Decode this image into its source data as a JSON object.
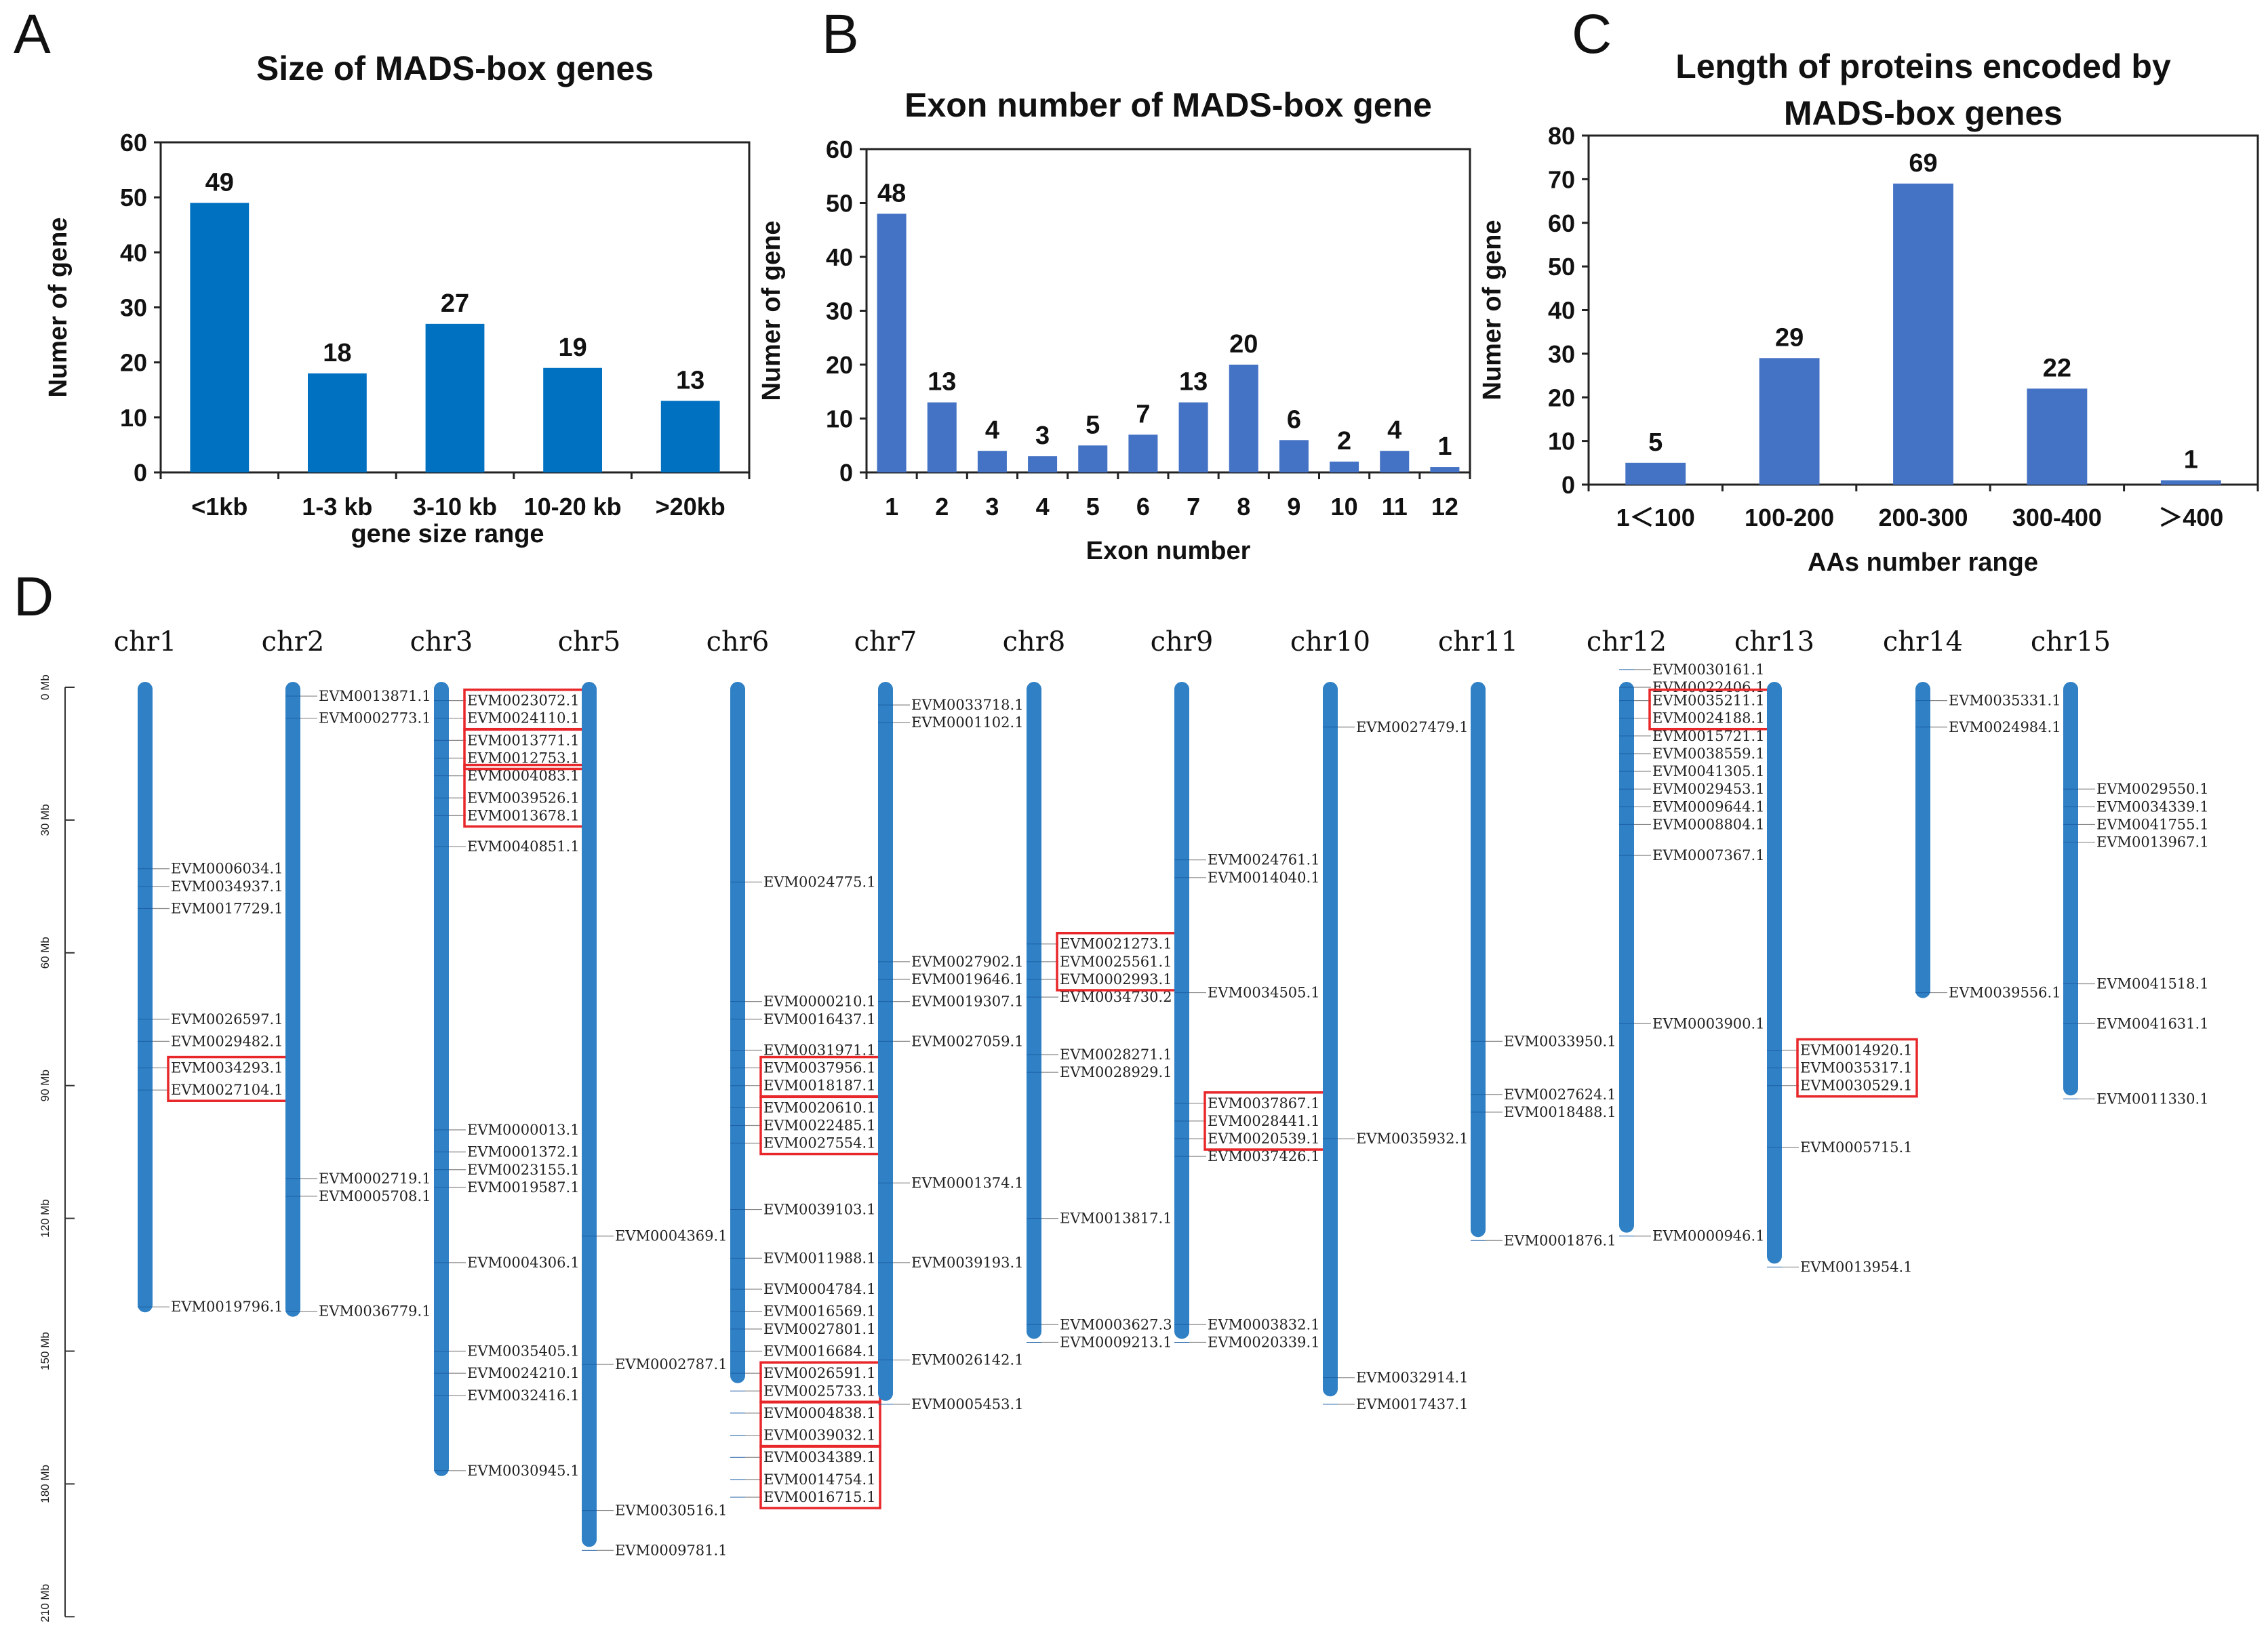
{
  "panels": {
    "a": "A",
    "b": "B",
    "c": "C",
    "d": "D"
  },
  "colors": {
    "bar_a": "#0071C1",
    "bar_bc": "#4472C4",
    "chromosome": "#2F80C4",
    "highlight": "#E8272A"
  },
  "chart_data": [
    {
      "type": "bar",
      "title": "Size of MADS-box genes",
      "categories": [
        "<1kb",
        "1-3 kb",
        "3-10 kb",
        "10-20 kb",
        ">20kb"
      ],
      "values": [
        49,
        18,
        27,
        19,
        13
      ],
      "xlabel": "gene size range",
      "ylabel": "Numer of gene",
      "ylim": [
        0,
        60
      ],
      "yticks": [
        0,
        10,
        20,
        30,
        40,
        50,
        60
      ]
    },
    {
      "type": "bar",
      "title": "Exon number of MADS-box  gene",
      "categories": [
        "1",
        "2",
        "3",
        "4",
        "5",
        "6",
        "7",
        "8",
        "9",
        "10",
        "11",
        "12"
      ],
      "values": [
        48,
        13,
        4,
        3,
        5,
        7,
        13,
        20,
        6,
        2,
        4,
        1
      ],
      "xlabel": "Exon number",
      "ylabel": "Numer of gene",
      "ylim": [
        0,
        60
      ],
      "yticks": [
        0,
        10,
        20,
        30,
        40,
        50,
        60
      ]
    },
    {
      "type": "bar",
      "title_lines": [
        "Length of proteins encoded by",
        "MADS-box genes"
      ],
      "categories": [
        "1＜100",
        "100-200",
        "200-300",
        "300-400",
        "＞400"
      ],
      "values": [
        5,
        29,
        69,
        22,
        1
      ],
      "xlabel": "AAs number range",
      "ylabel": "Numer of gene",
      "ylim": [
        0,
        80
      ],
      "yticks": [
        0,
        10,
        20,
        30,
        40,
        50,
        60,
        70,
        80
      ]
    },
    {
      "type": "chromosome_map",
      "scale_ticks": [
        "0 Mb",
        "30 Mb",
        "60 Mb",
        "90 Mb",
        "120 Mb",
        "150 Mb",
        "180 Mb",
        "210 Mb"
      ],
      "scale_mb": [
        0,
        30,
        60,
        90,
        120,
        150,
        180,
        210
      ],
      "chromosomes": [
        {
          "name": "chr1",
          "length_mb": 140,
          "genes": [
            {
              "id": "EVM0006034.1",
              "mb": 41
            },
            {
              "id": "EVM0034937.1",
              "mb": 45
            },
            {
              "id": "EVM0017729.1",
              "mb": 50
            },
            {
              "id": "EVM0026597.1",
              "mb": 75
            },
            {
              "id": "EVM0029482.1",
              "mb": 80
            },
            {
              "id": "EVM0034293.1",
              "mb": 86,
              "box": 1
            },
            {
              "id": "EVM0027104.1",
              "mb": 91,
              "box": 1
            },
            {
              "id": "EVM0019796.1",
              "mb": 140
            }
          ]
        },
        {
          "name": "chr2",
          "length_mb": 141,
          "genes": [
            {
              "id": "EVM0013871.1",
              "mb": 2
            },
            {
              "id": "EVM0002773.1",
              "mb": 7
            },
            {
              "id": "EVM0002719.1",
              "mb": 111
            },
            {
              "id": "EVM0005708.1",
              "mb": 115
            },
            {
              "id": "EVM0036779.1",
              "mb": 141
            }
          ]
        },
        {
          "name": "chr3",
          "length_mb": 177,
          "genes": [
            {
              "id": "EVM0023072.1",
              "mb": 3,
              "box": 1
            },
            {
              "id": "EVM0024110.1",
              "mb": 7,
              "box": 1
            },
            {
              "id": "EVM0013771.1",
              "mb": 12,
              "box": 2
            },
            {
              "id": "EVM0012753.1",
              "mb": 16,
              "box": 2
            },
            {
              "id": "EVM0004083.1",
              "mb": 20,
              "box": 3
            },
            {
              "id": "EVM0039526.1",
              "mb": 25,
              "box": 3
            },
            {
              "id": "EVM0013678.1",
              "mb": 29,
              "box": 3
            },
            {
              "id": "EVM0040851.1",
              "mb": 36
            },
            {
              "id": "EVM0000013.1",
              "mb": 100
            },
            {
              "id": "EVM0001372.1",
              "mb": 105
            },
            {
              "id": "EVM0023155.1",
              "mb": 109
            },
            {
              "id": "EVM0019587.1",
              "mb": 113
            },
            {
              "id": "EVM0004306.1",
              "mb": 130
            },
            {
              "id": "EVM0035405.1",
              "mb": 150
            },
            {
              "id": "EVM0024210.1",
              "mb": 155
            },
            {
              "id": "EVM0032416.1",
              "mb": 160
            },
            {
              "id": "EVM0030945.1",
              "mb": 177
            }
          ]
        },
        {
          "name": "chr5",
          "length_mb": 193,
          "genes": [
            {
              "id": "EVM0004369.1",
              "mb": 124
            },
            {
              "id": "EVM0002787.1",
              "mb": 153
            },
            {
              "id": "EVM0030516.1",
              "mb": 186
            },
            {
              "id": "EVM0009781.1",
              "mb": 195
            }
          ]
        },
        {
          "name": "chr6",
          "length_mb": 156,
          "genes": [
            {
              "id": "EVM0024775.1",
              "mb": 44
            },
            {
              "id": "EVM0000210.1",
              "mb": 71
            },
            {
              "id": "EVM0016437.1",
              "mb": 75
            },
            {
              "id": "EVM0031971.1",
              "mb": 82
            },
            {
              "id": "EVM0037956.1",
              "mb": 86,
              "box": 1
            },
            {
              "id": "EVM0018187.1",
              "mb": 90,
              "box": 1
            },
            {
              "id": "EVM0020610.1",
              "mb": 95,
              "box": 2
            },
            {
              "id": "EVM0022485.1",
              "mb": 99,
              "box": 2
            },
            {
              "id": "EVM0027554.1",
              "mb": 103,
              "box": 2
            },
            {
              "id": "EVM0039103.1",
              "mb": 118
            },
            {
              "id": "EVM0011988.1",
              "mb": 129
            },
            {
              "id": "EVM0004784.1",
              "mb": 136
            },
            {
              "id": "EVM0016569.1",
              "mb": 141
            },
            {
              "id": "EVM0027801.1",
              "mb": 145
            },
            {
              "id": "EVM0016684.1",
              "mb": 150
            },
            {
              "id": "EVM0026591.1",
              "mb": 155,
              "box": 3
            },
            {
              "id": "EVM0025733.1",
              "mb": 159,
              "box": 3
            },
            {
              "id": "EVM0004838.1",
              "mb": 164,
              "box": 4
            },
            {
              "id": "EVM0039032.1",
              "mb": 169,
              "box": 4
            },
            {
              "id": "EVM0034389.1",
              "mb": 174,
              "box": 5
            },
            {
              "id": "EVM0014754.1",
              "mb": 179,
              "box": 5
            },
            {
              "id": "EVM0016715.1",
              "mb": 183,
              "box": 5
            }
          ]
        },
        {
          "name": "chr7",
          "length_mb": 160,
          "genes": [
            {
              "id": "EVM0033718.1",
              "mb": 4
            },
            {
              "id": "EVM0001102.1",
              "mb": 8
            },
            {
              "id": "EVM0027902.1",
              "mb": 62
            },
            {
              "id": "EVM0019646.1",
              "mb": 66
            },
            {
              "id": "EVM0019307.1",
              "mb": 71
            },
            {
              "id": "EVM0027059.1",
              "mb": 80
            },
            {
              "id": "EVM0001374.1",
              "mb": 112
            },
            {
              "id": "EVM0039193.1",
              "mb": 130
            },
            {
              "id": "EVM0026142.1",
              "mb": 152
            },
            {
              "id": "EVM0005453.1",
              "mb": 162
            }
          ]
        },
        {
          "name": "chr8",
          "length_mb": 146,
          "genes": [
            {
              "id": "EVM0021273.1",
              "mb": 58,
              "box": 1
            },
            {
              "id": "EVM0025561.1",
              "mb": 62,
              "box": 1
            },
            {
              "id": "EVM0002993.1",
              "mb": 66,
              "box": 1
            },
            {
              "id": "EVM0034730.2",
              "mb": 70
            },
            {
              "id": "EVM0028271.1",
              "mb": 83
            },
            {
              "id": "EVM0028929.1",
              "mb": 87
            },
            {
              "id": "EVM0013817.1",
              "mb": 120
            },
            {
              "id": "EVM0003627.3",
              "mb": 144
            },
            {
              "id": "EVM0009213.1",
              "mb": 148
            }
          ]
        },
        {
          "name": "chr9",
          "length_mb": 146,
          "genes": [
            {
              "id": "EVM0024761.1",
              "mb": 39
            },
            {
              "id": "EVM0014040.1",
              "mb": 43
            },
            {
              "id": "EVM0034505.1",
              "mb": 69
            },
            {
              "id": "EVM0037867.1",
              "mb": 94,
              "box": 1
            },
            {
              "id": "EVM0028441.1",
              "mb": 98,
              "box": 1
            },
            {
              "id": "EVM0020539.1",
              "mb": 102,
              "box": 1
            },
            {
              "id": "EVM0037426.1",
              "mb": 106
            },
            {
              "id": "EVM0003832.1",
              "mb": 144
            },
            {
              "id": "EVM0020339.1",
              "mb": 148
            }
          ]
        },
        {
          "name": "chr10",
          "length_mb": 159,
          "genes": [
            {
              "id": "EVM0027479.1",
              "mb": 9
            },
            {
              "id": "EVM0035932.1",
              "mb": 102
            },
            {
              "id": "EVM0032914.1",
              "mb": 156
            },
            {
              "id": "EVM0017437.1",
              "mb": 162
            }
          ]
        },
        {
          "name": "chr11",
          "length_mb": 123,
          "genes": [
            {
              "id": "EVM0033950.1",
              "mb": 80
            },
            {
              "id": "EVM0027624.1",
              "mb": 92
            },
            {
              "id": "EVM0018488.1",
              "mb": 96
            },
            {
              "id": "EVM0001876.1",
              "mb": 125
            }
          ]
        },
        {
          "name": "chr12",
          "length_mb": 122,
          "genes": [
            {
              "id": "EVM0030161.1",
              "mb": -4
            },
            {
              "id": "EVM0022406.1",
              "mb": 0
            },
            {
              "id": "EVM0035211.1",
              "mb": 3,
              "box": 1
            },
            {
              "id": "EVM0024188.1",
              "mb": 7,
              "box": 1
            },
            {
              "id": "EVM0015721.1",
              "mb": 11
            },
            {
              "id": "EVM0038559.1",
              "mb": 15
            },
            {
              "id": "EVM0041305.1",
              "mb": 19
            },
            {
              "id": "EVM0029453.1",
              "mb": 23
            },
            {
              "id": "EVM0009644.1",
              "mb": 27
            },
            {
              "id": "EVM0008804.1",
              "mb": 31
            },
            {
              "id": "EVM0007367.1",
              "mb": 38
            },
            {
              "id": "EVM0003900.1",
              "mb": 76
            },
            {
              "id": "EVM0000946.1",
              "mb": 124
            }
          ]
        },
        {
          "name": "chr13",
          "length_mb": 129,
          "genes": [
            {
              "id": "EVM0014920.1",
              "mb": 82,
              "box": 1
            },
            {
              "id": "EVM0035317.1",
              "mb": 86,
              "box": 1
            },
            {
              "id": "EVM0030529.1",
              "mb": 90,
              "box": 1
            },
            {
              "id": "EVM0005715.1",
              "mb": 104
            },
            {
              "id": "EVM0013954.1",
              "mb": 131
            }
          ]
        },
        {
          "name": "chr14",
          "length_mb": 69,
          "genes": [
            {
              "id": "EVM0035331.1",
              "mb": 3
            },
            {
              "id": "EVM0024984.1",
              "mb": 9
            },
            {
              "id": "EVM0039556.1",
              "mb": 69
            }
          ]
        },
        {
          "name": "chr15",
          "length_mb": 91,
          "genes": [
            {
              "id": "EVM0029550.1",
              "mb": 23
            },
            {
              "id": "EVM0034339.1",
              "mb": 27
            },
            {
              "id": "EVM0041755.1",
              "mb": 31
            },
            {
              "id": "EVM0013967.1",
              "mb": 35
            },
            {
              "id": "EVM0041518.1",
              "mb": 67
            },
            {
              "id": "EVM0041631.1",
              "mb": 76
            },
            {
              "id": "EVM0011330.1",
              "mb": 93
            }
          ]
        }
      ]
    }
  ]
}
